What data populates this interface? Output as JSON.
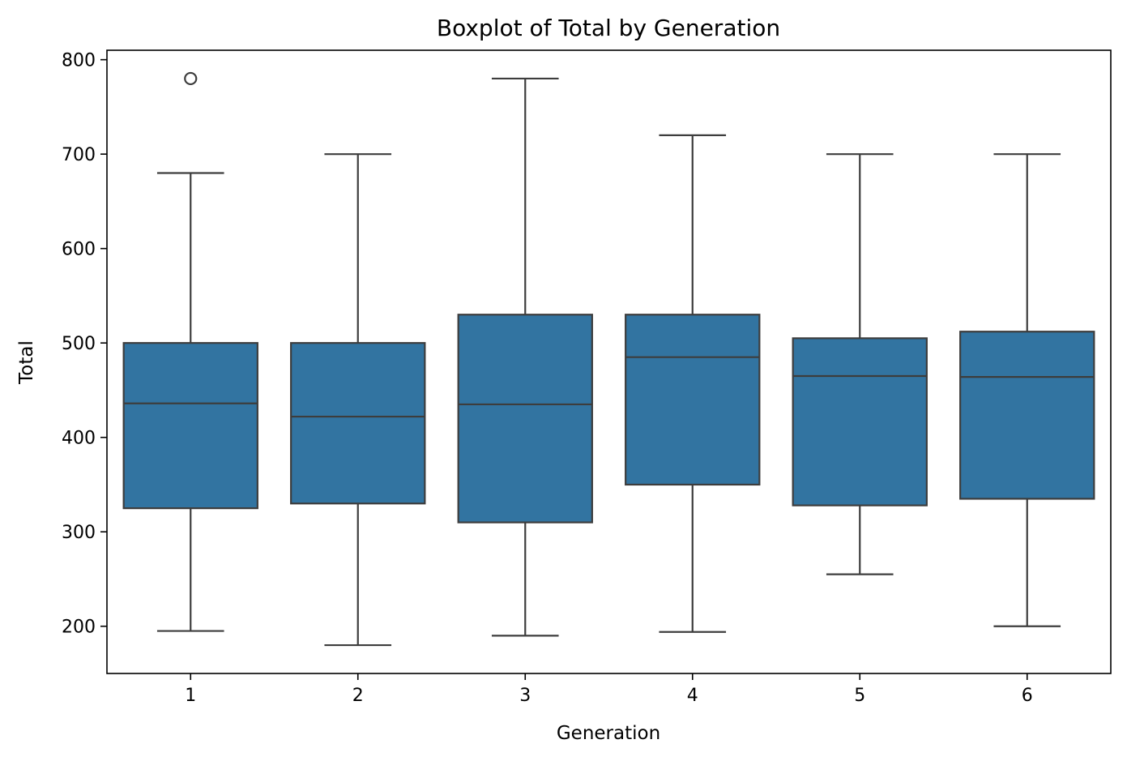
{
  "chart_data": {
    "type": "box",
    "title": "Boxplot of Total by Generation",
    "xlabel": "Generation",
    "ylabel": "Total",
    "ylim": [
      150,
      810
    ],
    "yticks": [
      200,
      300,
      400,
      500,
      600,
      700,
      800
    ],
    "categories": [
      "1",
      "2",
      "3",
      "4",
      "5",
      "6"
    ],
    "boxes": [
      {
        "category": "1",
        "whisker_low": 195,
        "q1": 325,
        "median": 436,
        "q3": 500,
        "whisker_high": 680,
        "outliers": [
          780
        ]
      },
      {
        "category": "2",
        "whisker_low": 180,
        "q1": 330,
        "median": 422,
        "q3": 500,
        "whisker_high": 700,
        "outliers": []
      },
      {
        "category": "3",
        "whisker_low": 190,
        "q1": 310,
        "median": 435,
        "q3": 530,
        "whisker_high": 780,
        "outliers": []
      },
      {
        "category": "4",
        "whisker_low": 194,
        "q1": 350,
        "median": 485,
        "q3": 530,
        "whisker_high": 720,
        "outliers": []
      },
      {
        "category": "5",
        "whisker_low": 255,
        "q1": 328,
        "median": 465,
        "q3": 505,
        "whisker_high": 700,
        "outliers": []
      },
      {
        "category": "6",
        "whisker_low": 200,
        "q1": 335,
        "median": 464,
        "q3": 512,
        "whisker_high": 700,
        "outliers": []
      }
    ],
    "box_color": "#3274a1",
    "line_color": "#3d3d3d",
    "grid": false,
    "legend": "none"
  }
}
